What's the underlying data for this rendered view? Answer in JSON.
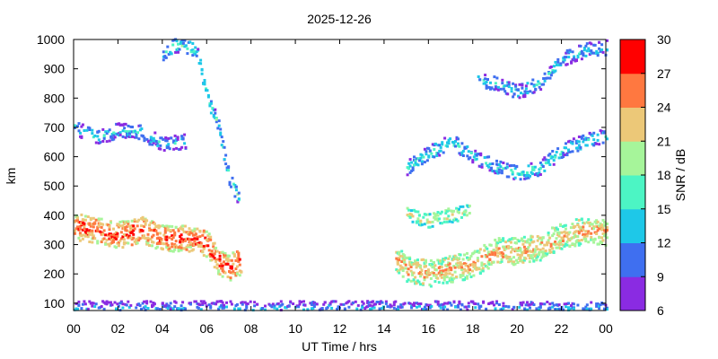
{
  "chart_data": {
    "type": "heatmap",
    "title": "2025-12-26",
    "xlabel": "UT Time / hrs",
    "ylabel": "km",
    "xlim": [
      0,
      24
    ],
    "ylim": [
      75,
      1000
    ],
    "x_ticks": [
      "00",
      "02",
      "04",
      "06",
      "08",
      "10",
      "12",
      "14",
      "16",
      "18",
      "20",
      "22",
      "00"
    ],
    "y_ticks": [
      "100",
      "200",
      "300",
      "400",
      "500",
      "600",
      "700",
      "800",
      "900",
      "1000"
    ],
    "colorbar": {
      "label": "SNR / dB",
      "range": [
        6,
        30
      ],
      "ticks": [
        "6",
        "9",
        "12",
        "15",
        "18",
        "21",
        "24",
        "27",
        "30"
      ],
      "colors": [
        "#8a2be2",
        "#3f6ff0",
        "#1ec8e8",
        "#4cf5c4",
        "#a6f59a",
        "#ecc878",
        "#ff7840",
        "#ff0000"
      ]
    },
    "traces": [
      {
        "name": "",
        "x": [
          0,
          1,
          2,
          3,
          4,
          4.5,
          5,
          5.5,
          6,
          6.5,
          7,
          7.5
        ],
        "y": [
          360,
          345,
          330,
          350,
          320,
          320,
          320,
          315,
          300,
          240,
          220,
          240
        ],
        "snr": 24
      },
      {
        "name": "",
        "x": [
          14.5,
          15,
          16,
          17,
          18,
          19,
          20,
          21,
          22,
          23,
          24
        ],
        "y": [
          250,
          210,
          200,
          215,
          230,
          275,
          275,
          290,
          330,
          345,
          340
        ],
        "snr": 21
      },
      {
        "name": "",
        "x": [
          15,
          16,
          17,
          17.8
        ],
        "y": [
          400,
          380,
          400,
          410
        ],
        "snr": 18
      },
      {
        "name": "",
        "x": [
          15,
          16,
          17,
          18,
          19,
          20,
          21,
          22,
          23,
          24
        ],
        "y": [
          560,
          610,
          650,
          600,
          560,
          540,
          560,
          620,
          650,
          670
        ],
        "snr": 12
      },
      {
        "name": "",
        "x": [
          0,
          1,
          2,
          3,
          4,
          5
        ],
        "y": [
          700,
          660,
          690,
          680,
          640,
          650
        ],
        "snr": 11
      },
      {
        "name": "",
        "x": [
          18.2,
          19,
          20,
          21,
          22,
          23,
          24
        ],
        "y": [
          860,
          850,
          820,
          850,
          930,
          960,
          970
        ],
        "snr": 11
      },
      {
        "name": "",
        "x": [
          4,
          4.5,
          5,
          5.5,
          6,
          6.5,
          7,
          7.4
        ],
        "y": [
          950,
          980,
          970,
          960,
          800,
          700,
          520,
          460
        ],
        "snr": 13
      },
      {
        "name": "",
        "x": [
          0,
          2,
          4,
          6,
          8,
          10,
          12,
          14,
          16,
          18,
          20,
          22,
          24
        ],
        "y": [
          80,
          80,
          80,
          80,
          80,
          80,
          80,
          80,
          80,
          80,
          80,
          80,
          80
        ],
        "snr": 9
      }
    ]
  }
}
